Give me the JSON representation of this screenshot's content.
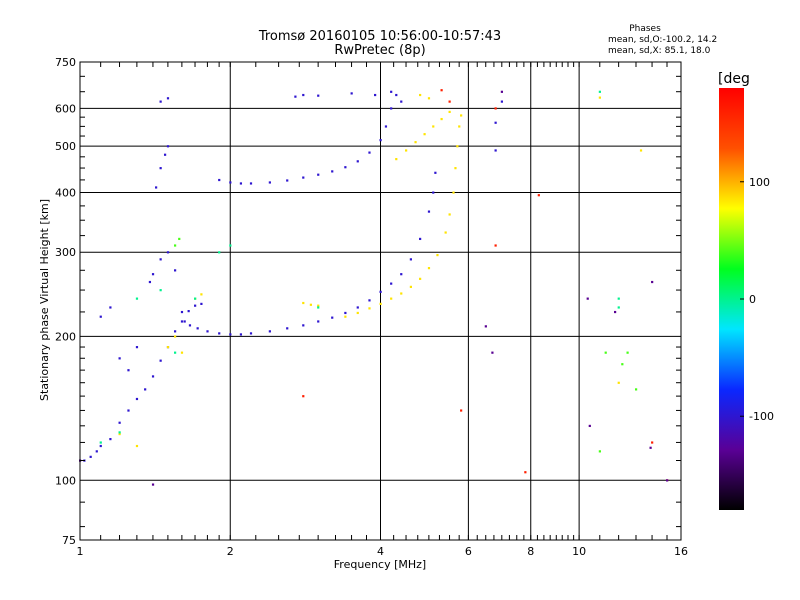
{
  "chart_data": {
    "type": "scatter",
    "title": "Tromsø 20160105 10:56:00-10:57:43",
    "subtitle": "RwPretec (8p)",
    "xlabel": "Frequency [MHz]",
    "ylabel": "Stationary phase Virtual Height [km]",
    "x_scale": "log",
    "y_scale": "log",
    "xlim": [
      1,
      16
    ],
    "ylim": [
      75,
      750
    ],
    "x_ticks": [
      1,
      2,
      4,
      6,
      8,
      10,
      16
    ],
    "x_tick_labels": [
      "1",
      "2",
      "4",
      "6",
      "8",
      "10",
      "16"
    ],
    "y_ticks": [
      75,
      100,
      200,
      300,
      400,
      500,
      600,
      750
    ],
    "y_tick_labels": [
      "75",
      "100",
      "200",
      "300",
      "400",
      "500",
      "600",
      "750"
    ],
    "grid": true,
    "stats": {
      "heading": "Phases",
      "line1": "mean, sd,O:-100.2, 14.2",
      "line2": "mean, sd,X: 85.1, 18.0"
    },
    "colorbar": {
      "label": "[deg",
      "range": [
        -180,
        180
      ],
      "ticks": [
        100,
        0,
        -100
      ],
      "tick_labels": [
        "100",
        "0",
        "-100"
      ],
      "colors": [
        "#000000",
        "#5a0096",
        "#0a28ff",
        "#00e6ff",
        "#00ff1e",
        "#ffff00",
        "#ff5000",
        "#ff0000"
      ]
    },
    "series": [
      {
        "mode": "O",
        "phase_deg": -100,
        "points": [
          [
            1.02,
            110
          ],
          [
            1.05,
            112
          ],
          [
            1.08,
            115
          ],
          [
            1.1,
            118
          ],
          [
            1.15,
            122
          ],
          [
            1.2,
            132
          ],
          [
            1.25,
            140
          ],
          [
            1.3,
            148
          ],
          [
            1.35,
            155
          ],
          [
            1.4,
            165
          ],
          [
            1.45,
            178
          ],
          [
            1.5,
            190
          ],
          [
            1.55,
            205
          ],
          [
            1.6,
            215
          ],
          [
            1.65,
            226
          ],
          [
            1.7,
            232
          ],
          [
            1.75,
            234
          ],
          [
            1.6,
            225
          ],
          [
            1.62,
            215
          ],
          [
            1.66,
            211
          ],
          [
            1.72,
            208
          ],
          [
            1.8,
            205
          ],
          [
            1.9,
            203
          ],
          [
            2.0,
            202
          ],
          [
            2.1,
            202
          ],
          [
            2.2,
            203
          ],
          [
            2.4,
            205
          ],
          [
            2.6,
            208
          ],
          [
            2.8,
            211
          ],
          [
            3.0,
            215
          ],
          [
            3.2,
            219
          ],
          [
            3.4,
            224
          ],
          [
            3.6,
            230
          ],
          [
            3.8,
            238
          ],
          [
            4.0,
            248
          ],
          [
            4.2,
            258
          ],
          [
            4.4,
            270
          ],
          [
            4.6,
            290
          ],
          [
            4.8,
            320
          ],
          [
            5.0,
            365
          ],
          [
            5.1,
            400
          ],
          [
            5.15,
            440
          ],
          [
            1.9,
            425
          ],
          [
            2.0,
            420
          ],
          [
            2.1,
            418
          ],
          [
            2.2,
            418
          ],
          [
            2.4,
            420
          ],
          [
            2.6,
            424
          ],
          [
            2.8,
            430
          ],
          [
            3.0,
            436
          ],
          [
            3.2,
            443
          ],
          [
            3.4,
            452
          ],
          [
            3.6,
            465
          ],
          [
            3.8,
            485
          ],
          [
            4.0,
            515
          ],
          [
            4.1,
            550
          ],
          [
            4.2,
            600
          ],
          [
            4.3,
            640
          ],
          [
            1.42,
            410
          ],
          [
            1.45,
            450
          ],
          [
            1.48,
            480
          ],
          [
            1.5,
            500
          ],
          [
            1.4,
            270
          ],
          [
            1.45,
            290
          ],
          [
            1.5,
            300
          ],
          [
            1.38,
            260
          ],
          [
            1.55,
            275
          ],
          [
            1.1,
            220
          ],
          [
            1.15,
            230
          ],
          [
            1.2,
            180
          ],
          [
            1.3,
            190
          ],
          [
            1.25,
            170
          ],
          [
            1.45,
            620
          ],
          [
            1.5,
            630
          ],
          [
            2.7,
            635
          ],
          [
            2.8,
            640
          ],
          [
            3.0,
            638
          ],
          [
            3.5,
            645
          ],
          [
            3.9,
            640
          ],
          [
            4.2,
            650
          ],
          [
            4.4,
            620
          ],
          [
            6.8,
            490
          ],
          [
            6.8,
            560
          ],
          [
            7.0,
            620
          ]
        ]
      },
      {
        "mode": "X",
        "phase_deg": 85,
        "points": [
          [
            3.4,
            220
          ],
          [
            3.6,
            224
          ],
          [
            3.8,
            229
          ],
          [
            4.0,
            234
          ],
          [
            4.2,
            240
          ],
          [
            4.4,
            246
          ],
          [
            4.6,
            254
          ],
          [
            4.8,
            264
          ],
          [
            5.0,
            278
          ],
          [
            5.2,
            296
          ],
          [
            5.4,
            330
          ],
          [
            5.5,
            360
          ],
          [
            5.6,
            400
          ],
          [
            5.65,
            450
          ],
          [
            5.7,
            500
          ],
          [
            5.75,
            550
          ],
          [
            5.8,
            580
          ],
          [
            4.3,
            470
          ],
          [
            4.5,
            490
          ],
          [
            4.7,
            510
          ],
          [
            4.9,
            530
          ],
          [
            5.1,
            550
          ],
          [
            5.3,
            570
          ],
          [
            5.5,
            590
          ],
          [
            4.8,
            640
          ],
          [
            5.0,
            630
          ],
          [
            2.8,
            235
          ],
          [
            2.9,
            233
          ],
          [
            3.0,
            232
          ],
          [
            1.5,
            190
          ],
          [
            1.55,
            200
          ],
          [
            1.6,
            185
          ],
          [
            1.2,
            125
          ],
          [
            1.3,
            118
          ],
          [
            1.7,
            240
          ],
          [
            1.75,
            245
          ],
          [
            11.0,
            632
          ],
          [
            12.0,
            160
          ],
          [
            13.3,
            490
          ]
        ]
      },
      {
        "mode": "other",
        "phase_deg": 0,
        "points": [
          [
            1.3,
            240
          ],
          [
            1.45,
            250
          ],
          [
            1.7,
            240
          ],
          [
            1.9,
            300
          ],
          [
            2.0,
            310
          ],
          [
            1.55,
            185
          ],
          [
            3.0,
            230
          ],
          [
            12.0,
            230
          ],
          [
            12.0,
            240
          ],
          [
            11.0,
            650
          ],
          [
            1.1,
            120
          ],
          [
            1.2,
            126
          ]
        ]
      },
      {
        "mode": "other",
        "phase_deg": 160,
        "points": [
          [
            2.8,
            150
          ],
          [
            5.8,
            140
          ],
          [
            5.5,
            620
          ],
          [
            5.3,
            655
          ],
          [
            6.8,
            600
          ],
          [
            6.8,
            310
          ],
          [
            7.8,
            104
          ],
          [
            8.3,
            395
          ],
          [
            14.0,
            120
          ],
          [
            15.0,
            100
          ]
        ]
      },
      {
        "mode": "other",
        "phase_deg": -130,
        "points": [
          [
            1.0,
            110
          ],
          [
            1.4,
            98
          ],
          [
            6.5,
            210
          ],
          [
            6.7,
            185
          ],
          [
            10.5,
            130
          ],
          [
            10.4,
            240
          ],
          [
            11.8,
            225
          ],
          [
            14.0,
            260
          ],
          [
            13.9,
            117
          ],
          [
            15.0,
            100
          ],
          [
            7.0,
            650
          ]
        ]
      },
      {
        "mode": "other",
        "phase_deg": 40,
        "points": [
          [
            1.55,
            310
          ],
          [
            1.58,
            320
          ],
          [
            11.0,
            115
          ],
          [
            13.0,
            155
          ],
          [
            12.5,
            185
          ],
          [
            11.3,
            185
          ],
          [
            12.2,
            175
          ]
        ]
      }
    ]
  }
}
